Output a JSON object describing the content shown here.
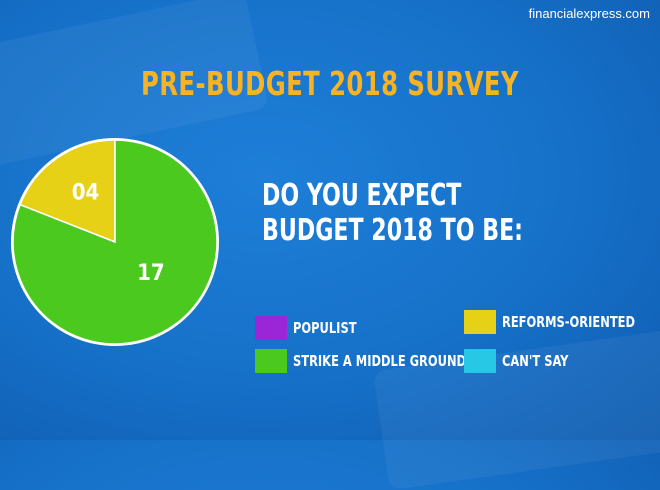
{
  "watermark": "financialexpress.com",
  "title": "PRE-BUDGET 2018 SURVEY",
  "question": [
    "DO YOU EXPECT",
    "BUDGET 2018 TO BE:"
  ],
  "chart_data": {
    "type": "pie",
    "start": "12 o'clock",
    "slices": [
      {
        "name": "REFORMS-ORIENTED",
        "value": 4,
        "label": "04",
        "color": "#e6d117"
      },
      {
        "name": "STRIKE A MIDDLE GROUND",
        "value": 17,
        "label": "17",
        "color": "#4cc91e"
      }
    ],
    "legend": [
      {
        "name": "POPULIST",
        "color": "#9b26d8"
      },
      {
        "name": "REFORMS-ORIENTED",
        "color": "#e6d117"
      },
      {
        "name": "STRIKE A MIDDLE GROUND",
        "color": "#4cc91e"
      },
      {
        "name": "CAN'T SAY",
        "color": "#27c7e6"
      }
    ],
    "legend_placement": "bottom-right"
  }
}
